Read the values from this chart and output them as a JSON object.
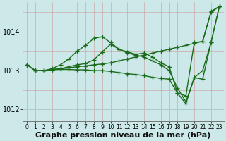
{
  "xlabel": "Graphe pression niveau de la mer (hPa)",
  "bg_color": "#cce8e8",
  "line_color": "#1a6b1a",
  "xlim": [
    -0.5,
    23.5
  ],
  "ylim": [
    1011.7,
    1014.75
  ],
  "yticks": [
    1012,
    1013,
    1014
  ],
  "xticks": [
    0,
    1,
    2,
    3,
    4,
    5,
    6,
    7,
    8,
    9,
    10,
    11,
    12,
    13,
    14,
    15,
    16,
    17,
    18,
    19,
    20,
    21,
    22,
    23
  ],
  "series": [
    {
      "x": [
        0,
        1,
        2,
        3,
        4,
        5,
        6,
        7,
        8,
        9,
        10,
        11,
        12,
        13,
        14,
        15,
        16,
        17,
        18,
        19,
        20,
        21,
        22,
        23
      ],
      "y": [
        1013.15,
        1013.0,
        1013.0,
        1013.02,
        1013.05,
        1013.07,
        1013.1,
        1013.12,
        1013.15,
        1013.17,
        1013.2,
        1013.25,
        1013.3,
        1013.35,
        1013.4,
        1013.45,
        1013.5,
        1013.55,
        1013.6,
        1013.65,
        1013.7,
        1013.75,
        1014.5,
        1014.65
      ]
    },
    {
      "x": [
        0,
        1,
        2,
        3,
        4,
        5,
        6,
        7,
        8,
        9,
        10,
        11,
        12,
        13,
        14,
        15,
        16,
        17,
        18,
        19,
        20,
        21,
        22,
        23
      ],
      "y": [
        1013.15,
        1013.0,
        1013.0,
        1013.05,
        1013.15,
        1013.3,
        1013.5,
        1013.65,
        1013.83,
        1013.87,
        1013.72,
        1013.55,
        1013.45,
        1013.4,
        1013.35,
        1013.25,
        1013.15,
        1013.0,
        1012.55,
        1012.2,
        1012.82,
        1013.0,
        1013.72,
        1014.65
      ]
    },
    {
      "x": [
        1,
        2,
        3,
        4,
        5,
        6,
        7,
        8,
        9,
        10,
        11,
        12,
        13,
        14,
        15,
        16,
        17,
        18,
        19,
        20,
        21,
        22,
        23
      ],
      "y": [
        1013.0,
        1013.0,
        1013.03,
        1013.05,
        1013.1,
        1013.15,
        1013.18,
        1013.28,
        1013.48,
        1013.68,
        1013.55,
        1013.48,
        1013.42,
        1013.45,
        1013.35,
        1013.2,
        1013.1,
        1012.42,
        1012.35,
        1013.72,
        1013.75,
        1014.52,
        1014.65
      ]
    },
    {
      "x": [
        0,
        1,
        2,
        3,
        4,
        5,
        6,
        7,
        8,
        9,
        10,
        11,
        12,
        13,
        14,
        15,
        16,
        17,
        18,
        19,
        20,
        21,
        22,
        23
      ],
      "y": [
        1013.15,
        1013.0,
        1013.0,
        1013.02,
        1013.03,
        1013.03,
        1013.02,
        1013.02,
        1013.0,
        1013.0,
        1012.98,
        1012.95,
        1012.92,
        1012.9,
        1012.87,
        1012.83,
        1012.8,
        1012.78,
        1012.42,
        1012.15,
        1012.82,
        1012.78,
        1013.72,
        1014.65
      ]
    }
  ],
  "marker": "+",
  "marker_size": 4,
  "linewidth": 1.0,
  "xlabel_fontsize": 8,
  "ytick_fontsize": 7,
  "xtick_fontsize": 5.5
}
